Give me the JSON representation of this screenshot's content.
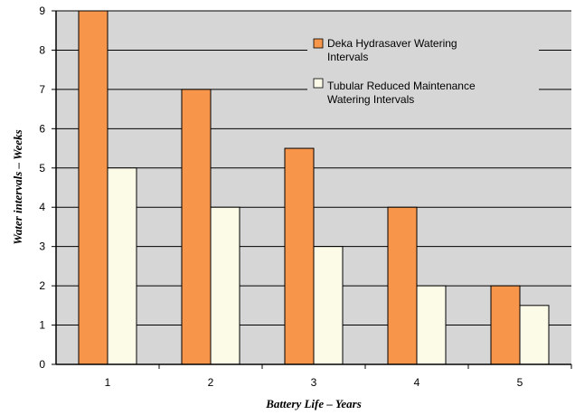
{
  "chart_data": {
    "type": "bar",
    "categories": [
      "1",
      "2",
      "3",
      "4",
      "5"
    ],
    "series": [
      {
        "name": "Deka Hydrasaver Watering Intervals",
        "values": [
          9,
          7,
          5.5,
          4,
          2
        ],
        "color": "#f7964a"
      },
      {
        "name": "Tubular Reduced Maintenance Watering Intervals",
        "values": [
          5,
          4,
          3,
          2,
          1.5
        ],
        "color": "#fcfbe8"
      }
    ],
    "legend_lines": [
      [
        "Deka Hydrasaver Watering",
        "Intervals"
      ],
      [
        "Tubular Reduced Maintenance",
        "Watering Intervals"
      ]
    ],
    "xlabel": "Battery Life – Years",
    "ylabel": "Water intervals – Weeks",
    "ylim": [
      0,
      9
    ],
    "yticks": [
      "0",
      "1",
      "2",
      "3",
      "4",
      "5",
      "6",
      "7",
      "8",
      "9"
    ],
    "grid": true,
    "plot_background": "#d6d6d6",
    "legend_position": "top-right"
  }
}
